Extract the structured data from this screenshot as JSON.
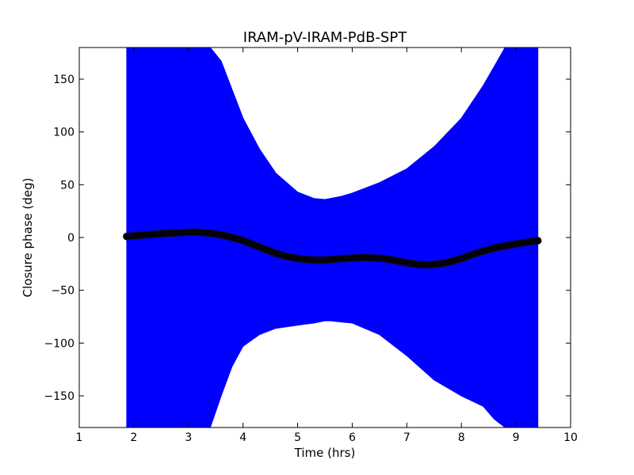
{
  "chart_data": {
    "type": "scatter",
    "title": "IRAM-pV-IRAM-PdB-SPT",
    "xlabel": "Time (hrs)",
    "ylabel": "Closure phase (deg)",
    "xlim": [
      1,
      10
    ],
    "ylim": [
      -180,
      180
    ],
    "xticks": [
      1,
      2,
      3,
      4,
      5,
      6,
      7,
      8,
      9,
      10
    ],
    "yticks": [
      -150,
      -100,
      -50,
      0,
      50,
      100,
      150
    ],
    "grid": false,
    "legend": "none",
    "colors": {
      "band": "#0000ff",
      "points": "#000000"
    },
    "series": [
      {
        "style": "error-band",
        "x": [
          1.87,
          2.5,
          3.0,
          3.2,
          3.4,
          3.6,
          3.8,
          4.0,
          4.3,
          4.6,
          5.0,
          5.3,
          5.5,
          5.6,
          5.8,
          6.0,
          6.5,
          7.0,
          7.5,
          8.0,
          8.4,
          8.6,
          8.8,
          9.0,
          9.2,
          9.4
        ],
        "upper": [
          180,
          180,
          180,
          180,
          180,
          167,
          140,
          113,
          84,
          61,
          43,
          37,
          36,
          37,
          39,
          42,
          52,
          65,
          86,
          113,
          144,
          162,
          180,
          180,
          180,
          180
        ],
        "lower": [
          -180,
          -180,
          -180,
          -180,
          -180,
          -150,
          -122,
          -103,
          -92,
          -86,
          -83,
          -81,
          -79,
          -79,
          -80,
          -81,
          -92,
          -112,
          -135,
          -150,
          -160,
          -172,
          -180,
          -180,
          -180,
          -180
        ]
      },
      {
        "style": "points",
        "x": [
          1.87,
          2.0,
          2.2,
          2.4,
          2.6,
          2.8,
          3.0,
          3.2,
          3.4,
          3.6,
          3.8,
          4.0,
          4.2,
          4.4,
          4.6,
          4.8,
          5.0,
          5.2,
          5.4,
          5.6,
          5.8,
          6.0,
          6.2,
          6.4,
          6.6,
          6.8,
          7.0,
          7.2,
          7.4,
          7.6,
          7.8,
          8.0,
          8.2,
          8.4,
          8.6,
          8.8,
          9.0,
          9.2,
          9.4
        ],
        "y": [
          1,
          1.5,
          2.5,
          3.2,
          4,
          4.5,
          5,
          5,
          4,
          2.5,
          0,
          -3,
          -7,
          -11,
          -15,
          -18,
          -20,
          -21,
          -21.5,
          -21,
          -20,
          -19.5,
          -19,
          -19.5,
          -20,
          -22,
          -24,
          -25.5,
          -26,
          -25,
          -23,
          -20,
          -16,
          -13,
          -10,
          -8,
          -6,
          -4.5,
          -3
        ]
      }
    ]
  }
}
